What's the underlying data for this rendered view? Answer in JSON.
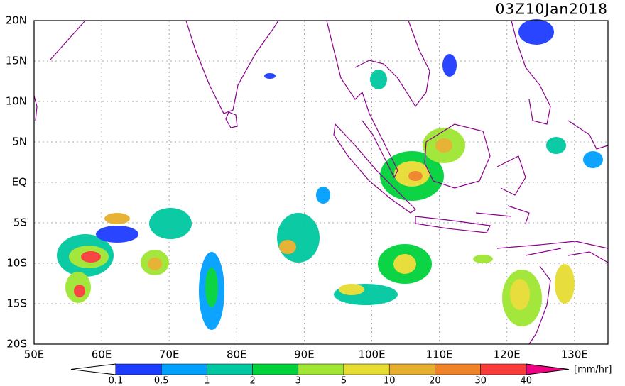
{
  "title": "03Z10Jan2018",
  "latitude_labels": [
    "20N",
    "15N",
    "10N",
    "5N",
    "EQ",
    "5S",
    "10S",
    "15S",
    "20S"
  ],
  "longitude_labels": [
    "50E",
    "60E",
    "70E",
    "80E",
    "90E",
    "100E",
    "110E",
    "120E",
    "130E"
  ],
  "colorbar": {
    "labels": [
      "0.1",
      "0.5",
      "1",
      "2",
      "3",
      "5",
      "10",
      "20",
      "30",
      "40"
    ],
    "colors": [
      "#1e3cff",
      "#00a0ff",
      "#00c8a0",
      "#00d23c",
      "#a0e632",
      "#e6dc32",
      "#e6af2d",
      "#f08228",
      "#fa3c3c"
    ],
    "under_color": "#ffffff",
    "over_color": "#f00082",
    "unit": "[mm/hr]"
  }
}
